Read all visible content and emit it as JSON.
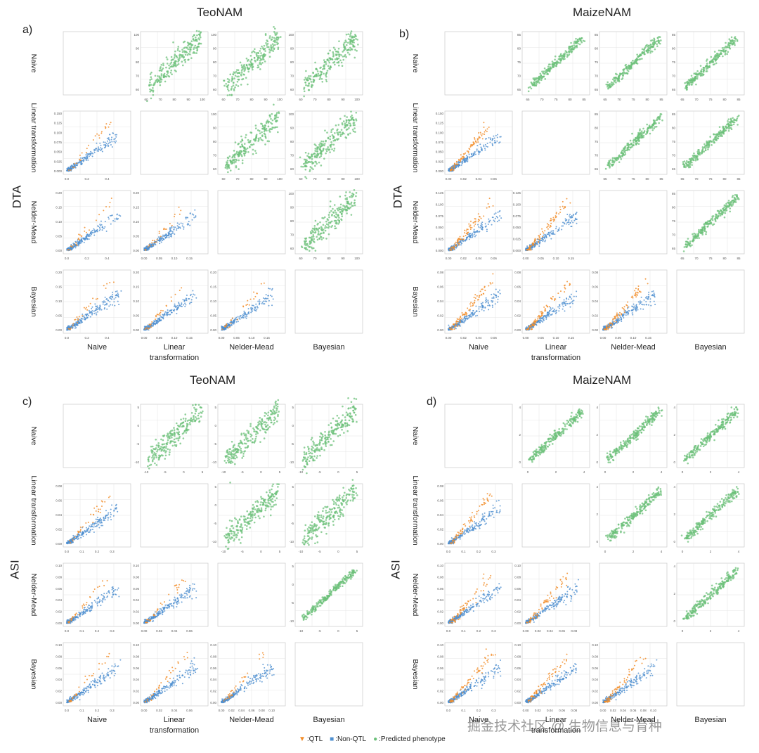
{
  "chart_data": [
    {
      "panel_label": "a)",
      "title": "TeoNAM",
      "trait": "DTA",
      "type": "scatter",
      "rows": [
        "Naive",
        "Linear transformation",
        "Nelder-Mead",
        "Bayesian"
      ],
      "cols": [
        "Naive",
        "Linear transformation",
        "Nelder-Mead",
        "Bayesian"
      ],
      "upper_ticks": [
        [
          "60",
          "70",
          "80",
          "90",
          "100"
        ],
        [
          "60",
          "70",
          "80",
          "90",
          "100"
        ],
        [
          "60",
          "70",
          "80",
          "90",
          "100"
        ]
      ],
      "lower_ticks": {
        "y": [
          [
            "0.000",
            "0.025",
            "0.050",
            "0.075",
            "0.100",
            "0.125",
            "0.150"
          ],
          [
            "0.00",
            "0.05",
            "0.10",
            "0.15",
            "0.20"
          ],
          [
            "0.00",
            "0.05",
            "0.10",
            "0.15",
            "0.20"
          ]
        ],
        "x": [
          [
            "0.0",
            "0.2",
            "0.4"
          ],
          [
            "0.00",
            "0.05",
            "0.10",
            "0.15"
          ],
          [
            "0.00",
            "0.05",
            "0.10",
            "0.15"
          ]
        ]
      },
      "qtl_level": 0.25
    },
    {
      "panel_label": "b)",
      "title": "MaizeNAM",
      "trait": "DTA",
      "type": "scatter",
      "rows": [
        "Naive",
        "Linear transformation",
        "Nelder-Mead",
        "Bayesian"
      ],
      "cols": [
        "Naive",
        "Linear transformation",
        "Nelder-Mead",
        "Bayesian"
      ],
      "upper_ticks": [
        [
          "65",
          "70",
          "75",
          "80",
          "85"
        ],
        [
          "65",
          "70",
          "75",
          "80",
          "85"
        ],
        [
          "65",
          "70",
          "75",
          "80",
          "85"
        ]
      ],
      "lower_ticks": {
        "y": [
          [
            "0.000",
            "0.025",
            "0.050",
            "0.075",
            "0.100",
            "0.125",
            "0.150"
          ],
          [
            "0.000",
            "0.025",
            "0.050",
            "0.075",
            "0.100",
            "0.125"
          ],
          [
            "0.00",
            "0.02",
            "0.04",
            "0.06",
            "0.08"
          ]
        ],
        "x": [
          [
            "0.00",
            "0.02",
            "0.04",
            "0.06"
          ],
          [
            "0.00",
            "0.05",
            "0.10",
            "0.15"
          ],
          [
            "0.00",
            "0.05",
            "0.10",
            "0.15"
          ]
        ]
      },
      "qtl_level": 0.75
    },
    {
      "panel_label": "c)",
      "title": "TeoNAM",
      "trait": "ASI",
      "type": "scatter",
      "rows": [
        "Naive",
        "Linear transformation",
        "Nelder-Mead",
        "Bayesian"
      ],
      "cols": [
        "Naive",
        "Linear transformation",
        "Nelder-Mead",
        "Bayesian"
      ],
      "upper_ticks": [
        [
          "-10",
          "-5",
          "0",
          "5"
        ],
        [
          "-10",
          "-5",
          "0",
          "5"
        ],
        [
          "-10",
          "-5",
          "0",
          "5"
        ]
      ],
      "lower_ticks": {
        "y": [
          [
            "0.00",
            "0.02",
            "0.04",
            "0.06",
            "0.08"
          ],
          [
            "0.00",
            "0.02",
            "0.04",
            "0.06",
            "0.08",
            "0.10"
          ],
          [
            "0.00",
            "0.02",
            "0.04",
            "0.06",
            "0.08",
            "0.10"
          ]
        ],
        "x": [
          [
            "0.0",
            "0.1",
            "0.2",
            "0.3"
          ],
          [
            "0.00",
            "0.02",
            "0.04",
            "0.06"
          ],
          [
            "0.00",
            "0.02",
            "0.04",
            "0.06",
            "0.08",
            "0.10"
          ]
        ]
      },
      "qtl_level": 0.3
    },
    {
      "panel_label": "d)",
      "title": "MaizeNAM",
      "trait": "ASI",
      "type": "scatter",
      "rows": [
        "Naive",
        "Linear transformation",
        "Nelder-Mead",
        "Bayesian"
      ],
      "cols": [
        "Naive",
        "Linear transformation",
        "Nelder-Mead",
        "Bayesian"
      ],
      "upper_ticks": [
        [
          "0",
          "2",
          "4"
        ],
        [
          "0",
          "2",
          "4"
        ],
        [
          "0",
          "2",
          "4"
        ]
      ],
      "lower_ticks": {
        "y": [
          [
            "0.00",
            "0.02",
            "0.04",
            "0.06",
            "0.08"
          ],
          [
            "0.00",
            "0.02",
            "0.04",
            "0.06",
            "0.08",
            "0.10"
          ],
          [
            "0.00",
            "0.02",
            "0.04",
            "0.06",
            "0.08",
            "0.10"
          ]
        ],
        "x": [
          [
            "0.0",
            "0.1",
            "0.2",
            "0.3"
          ],
          [
            "0.00",
            "0.02",
            "0.04",
            "0.06",
            "0.08"
          ],
          [
            "0.00",
            "0.02",
            "0.04",
            "0.06",
            "0.08",
            "0.10"
          ]
        ]
      },
      "qtl_level": 0.6
    }
  ],
  "legend": {
    "items": [
      {
        "label": ":QTL",
        "color": "#f28e2b",
        "marker": "triangle"
      },
      {
        "label": ":Non-QTL",
        "color": "#4e8fd0",
        "marker": "square"
      },
      {
        "label": ":Predicted phenotype",
        "color": "#6cc07a",
        "marker": "circle"
      }
    ]
  },
  "colors": {
    "qtl": "#f28e2b",
    "nonqtl": "#4e8fd0",
    "predicted": "#6cc07a",
    "grid": "#e6e6e6",
    "frame": "#d0d0d0"
  },
  "watermark": "掘金技术社区 @ 生物信息与育种"
}
